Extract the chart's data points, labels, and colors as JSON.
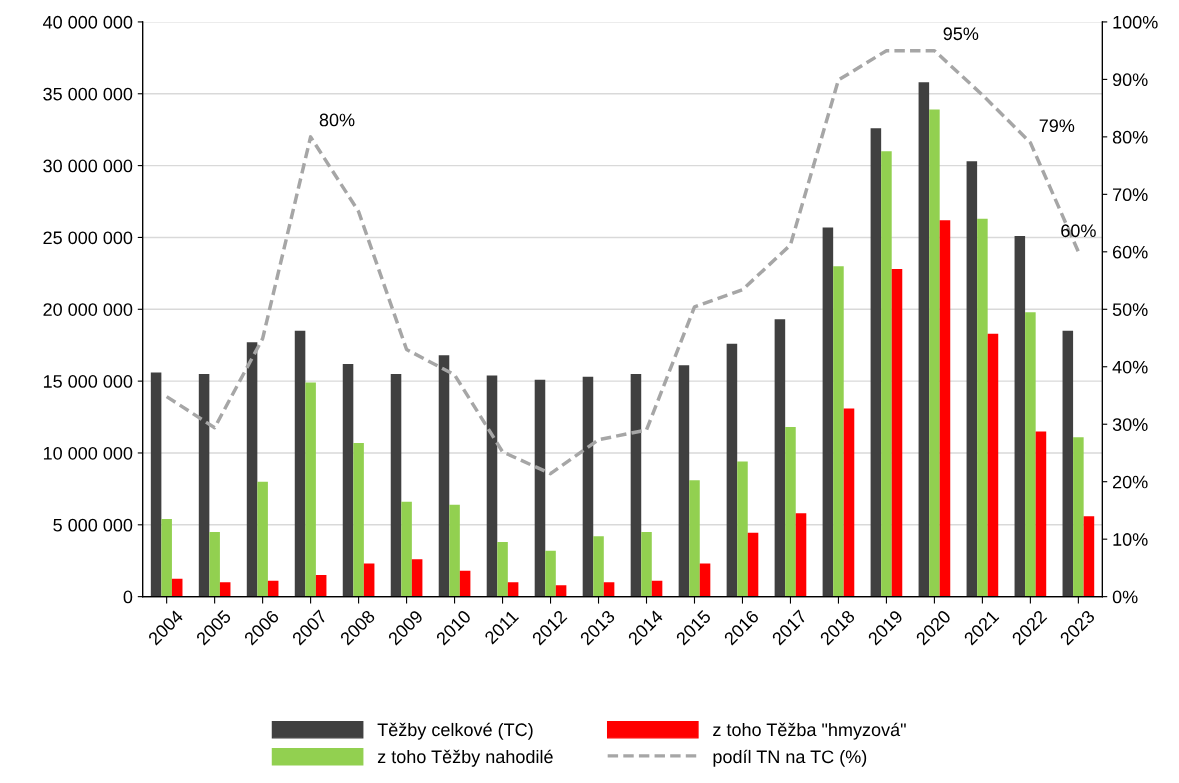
{
  "chart_data": {
    "type": "bar",
    "categories": [
      "2004",
      "2005",
      "2006",
      "2007",
      "2008",
      "2009",
      "2010",
      "2011",
      "2012",
      "2013",
      "2014",
      "2015",
      "2016",
      "2017",
      "2018",
      "2019",
      "2020",
      "2021",
      "2022",
      "2023"
    ],
    "series": [
      {
        "name": "Těžby celkové (TC)",
        "color": "#404040",
        "values": [
          15600000,
          15500000,
          17700000,
          18500000,
          16200000,
          15500000,
          16800000,
          15400000,
          15100000,
          15300000,
          15500000,
          16100000,
          17600000,
          19300000,
          25700000,
          32600000,
          35800000,
          30300000,
          25100000,
          18500000
        ]
      },
      {
        "name": "z toho Těžby nahodilé",
        "color": "#92d050",
        "values": [
          5400000,
          4500000,
          8000000,
          14900000,
          10700000,
          6600000,
          6400000,
          3800000,
          3200000,
          4200000,
          4500000,
          8100000,
          9400000,
          11800000,
          23000000,
          31000000,
          33900000,
          26300000,
          19800000,
          11100000
        ]
      },
      {
        "name": "z toho Těžba \"hmyzová\"",
        "color": "#ff0000",
        "values": [
          1250000,
          1000000,
          1100000,
          1500000,
          2300000,
          2600000,
          1800000,
          1000000,
          800000,
          1000000,
          1100000,
          2300000,
          4450000,
          5800000,
          13100000,
          22800000,
          26200000,
          18300000,
          11500000,
          5600000
        ]
      },
      {
        "name": "podíl TN na TC (%)",
        "type": "line",
        "axis": "y2",
        "color": "#a6a6a6",
        "line_style": "dashed",
        "values": [
          34.8,
          29.4,
          44.9,
          80,
          67,
          43,
          38.6,
          25.2,
          21.4,
          27.3,
          29,
          50.4,
          53.4,
          61.2,
          89.9,
          95,
          95,
          87.3,
          79,
          60
        ],
        "value_labels": [
          null,
          null,
          null,
          "80%",
          null,
          null,
          null,
          null,
          null,
          null,
          null,
          null,
          null,
          null,
          null,
          null,
          "95%",
          null,
          "79%",
          "60%"
        ]
      }
    ],
    "ylim": [
      0,
      40000000
    ],
    "yticks": [
      {
        "value": 0,
        "label": "0"
      },
      {
        "value": 5000000,
        "label": "5 000 000"
      },
      {
        "value": 10000000,
        "label": "10 000 000"
      },
      {
        "value": 15000000,
        "label": "15 000 000"
      },
      {
        "value": 20000000,
        "label": "20 000 000"
      },
      {
        "value": 25000000,
        "label": "25 000 000"
      },
      {
        "value": 30000000,
        "label": "30 000 000"
      },
      {
        "value": 35000000,
        "label": "35 000 000"
      },
      {
        "value": 40000000,
        "label": "40 000 000"
      }
    ],
    "y2lim": [
      0,
      100
    ],
    "y2ticks": [
      {
        "value": 0,
        "label": "0%"
      },
      {
        "value": 10,
        "label": "10%"
      },
      {
        "value": 20,
        "label": "20%"
      },
      {
        "value": 30,
        "label": "30%"
      },
      {
        "value": 40,
        "label": "40%"
      },
      {
        "value": 50,
        "label": "50%"
      },
      {
        "value": 60,
        "label": "60%"
      },
      {
        "value": 70,
        "label": "70%"
      },
      {
        "value": 80,
        "label": "80%"
      },
      {
        "value": 90,
        "label": "90%"
      },
      {
        "value": 100,
        "label": "100%"
      }
    ],
    "grid": "y",
    "legend": "bottom"
  }
}
